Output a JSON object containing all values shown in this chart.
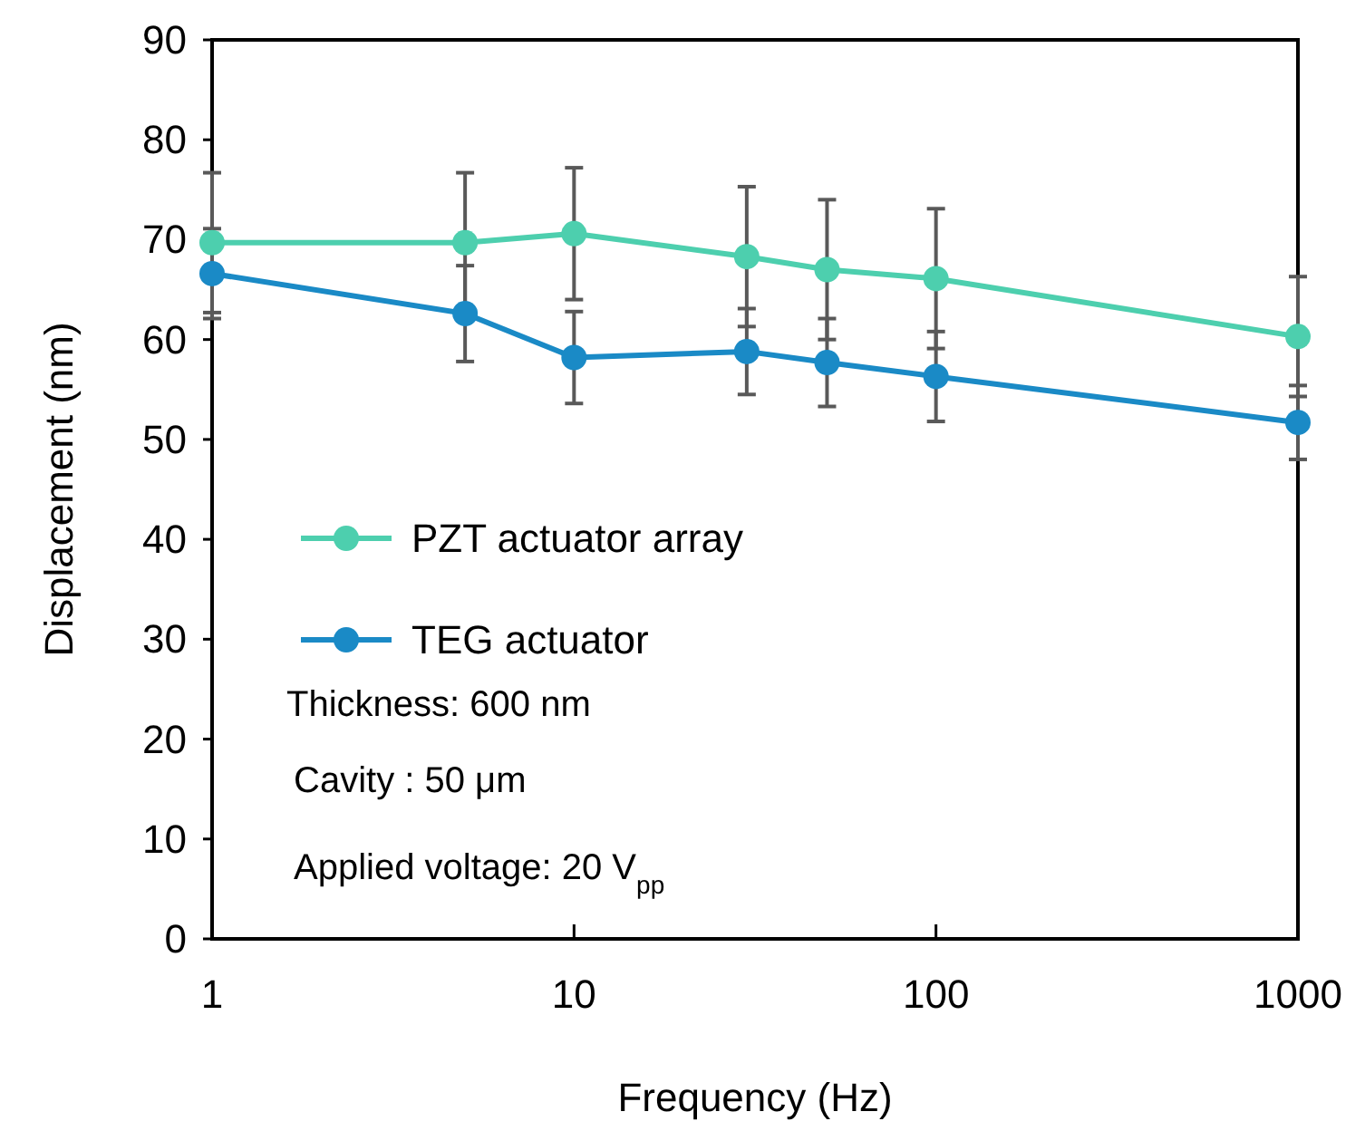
{
  "chart_data": {
    "type": "line",
    "xlabel": "Frequency (Hz)",
    "ylabel": "Displacement (nm)",
    "log": "x",
    "x": [
      1,
      5,
      10,
      30,
      50,
      100,
      1000
    ],
    "xlim": [
      1,
      1000
    ],
    "xticks": [
      1,
      10,
      100,
      1000
    ],
    "ylim": [
      0,
      90
    ],
    "yticks": [
      0,
      10,
      20,
      30,
      40,
      50,
      60,
      70,
      80,
      90
    ],
    "grid": false,
    "legend": "left",
    "marker": "circle",
    "line_style": "solid",
    "series": [
      {
        "name": "PZT actuator array",
        "color": "#4dcfae",
        "values": [
          69.7,
          69.7,
          70.6,
          68.3,
          67.0,
          66.1,
          60.3
        ],
        "errors": [
          7,
          7,
          6.6,
          7,
          7,
          7,
          6
        ]
      },
      {
        "name": "TEG actuator",
        "color": "#1a8ac6",
        "values": [
          66.6,
          62.6,
          58.2,
          58.8,
          57.7,
          56.3,
          51.7
        ],
        "errors": [
          4.5,
          4.8,
          4.6,
          4.3,
          4.4,
          4.5,
          3.7
        ]
      }
    ],
    "annotations": [
      "Thickness: 600 nm",
      "Cavity : 50 μm",
      "Applied voltage: 20 V$_{pp}$"
    ]
  }
}
